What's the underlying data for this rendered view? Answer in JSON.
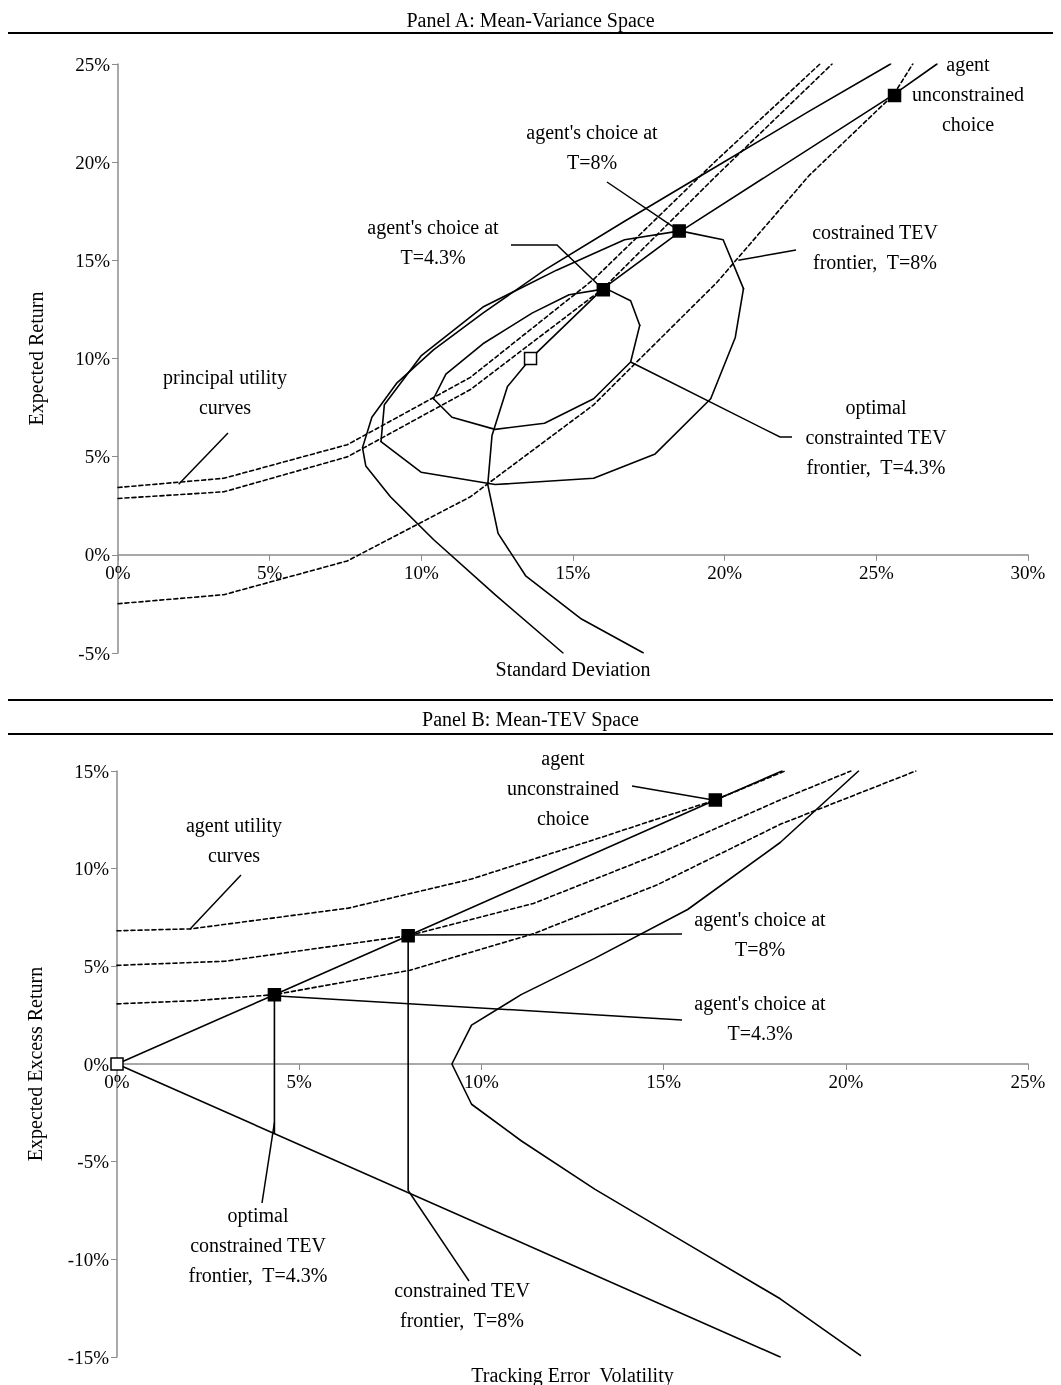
{
  "chart_data": [
    {
      "type": "line",
      "title": "Panel A: Mean-Variance Space",
      "xlabel": "Standard Deviation",
      "ylabel": "Expected Return",
      "grid": false,
      "marker": "none",
      "xlim": [
        0,
        30
      ],
      "xticks": [
        {
          "value": 0,
          "label": "0%"
        },
        {
          "value": 5,
          "label": "5%"
        },
        {
          "value": 10,
          "label": "10%"
        },
        {
          "value": 15,
          "label": "15%"
        },
        {
          "value": 20,
          "label": "20%"
        },
        {
          "value": 25,
          "label": "25%"
        },
        {
          "value": 30,
          "label": "30%"
        }
      ],
      "ylim": [
        -5,
        25
      ],
      "yticks": [
        {
          "value": -5,
          "label": "-5%"
        },
        {
          "value": 0,
          "label": "0%"
        },
        {
          "value": 5,
          "label": "5%"
        },
        {
          "value": 10,
          "label": "10%"
        },
        {
          "value": 15,
          "label": "15%"
        },
        {
          "value": 20,
          "label": "20%"
        },
        {
          "value": 25,
          "label": "25%"
        }
      ],
      "series": [
        {
          "type": "line",
          "color": "#000000",
          "line_style": "solid",
          "x": [
            14.67,
            12.43,
            10.4,
            8.98,
            8.17,
            8.06,
            8.37,
            9.18,
            10.4,
            12.03,
            14.06,
            16.7,
            19.74,
            22.79,
            25.47
          ],
          "values": [
            -5.0,
            -2.03,
            0.78,
            2.96,
            4.52,
            5.46,
            7.01,
            8.73,
            10.44,
            12.31,
            14.5,
            16.99,
            19.79,
            22.6,
            25.0
          ]
        },
        {
          "type": "line",
          "color": "#000000",
          "line_style": "solid",
          "x": [
            17.31,
            15.28,
            13.45,
            12.53,
            12.19,
            12.33,
            12.84,
            13.59,
            15.99,
            18.53,
            25.57,
            27.0
          ],
          "values": [
            -4.99,
            -3.27,
            -1.09,
            1.09,
            3.58,
            6.08,
            8.57,
            9.98,
            13.56,
            16.46,
            23.44,
            25.0
          ]
        },
        {
          "type": "line",
          "color": "#000000",
          "line_style": "solid",
          "x": [
            10.4,
            10.81,
            12.03,
            13.65,
            14.87,
            16.09,
            16.9,
            17.2
          ],
          "values": [
            7.95,
            9.2,
            10.75,
            12.31,
            13.25,
            13.56,
            12.94,
            11.69
          ]
        },
        {
          "type": "line",
          "color": "#000000",
          "line_style": "solid",
          "x": [
            10.4,
            11.01,
            12.43,
            14.06,
            15.68,
            16.9,
            17.2
          ],
          "values": [
            7.95,
            7.01,
            6.39,
            6.7,
            7.95,
            9.82,
            11.69
          ]
        },
        {
          "type": "line",
          "color": "#000000",
          "line_style": "solid",
          "x": [
            8.67,
            8.78,
            9.99,
            12.03,
            14.46,
            16.7,
            18.53,
            19.95,
            20.62
          ],
          "values": [
            5.77,
            7.64,
            10.13,
            12.62,
            14.5,
            16.05,
            16.5,
            16.05,
            13.56
          ]
        },
        {
          "type": "line",
          "color": "#000000",
          "line_style": "solid",
          "x": [
            8.67,
            9.99,
            12.43,
            15.68,
            17.71,
            19.54,
            20.35,
            20.62
          ],
          "values": [
            5.77,
            4.21,
            3.58,
            3.9,
            5.14,
            7.95,
            11.07,
            13.56
          ]
        },
        {
          "type": "line",
          "color": "#000000",
          "line_style": "dashed",
          "x": [
            0,
            3.49,
            7.56,
            11.62,
            15.68,
            19.74,
            23.14
          ],
          "values": [
            3.43,
            3.9,
            5.61,
            9.04,
            14.03,
            20.11,
            25.0
          ]
        },
        {
          "type": "line",
          "color": "#000000",
          "line_style": "dashed",
          "x": [
            0,
            3.49,
            7.56,
            11.62,
            15.99,
            19.74,
            23.54
          ],
          "values": [
            2.87,
            3.21,
            4.99,
            8.42,
            13.56,
            19.33,
            25.0
          ]
        },
        {
          "type": "line",
          "color": "#000000",
          "line_style": "dashed",
          "x": [
            0,
            3.49,
            7.56,
            11.62,
            15.68,
            19.74,
            22.79,
            25.57,
            26.2
          ],
          "values": [
            -2.49,
            -2.03,
            -0.31,
            2.96,
            7.64,
            13.87,
            19.33,
            23.44,
            25.0
          ]
        },
        {
          "type": "scatter",
          "marker": "square",
          "color": "#000000",
          "x": [
            16.0,
            18.5,
            25.6
          ],
          "values": [
            13.5,
            16.5,
            23.4
          ]
        },
        {
          "type": "scatter",
          "marker": "square",
          "color": "#ffffff",
          "x": [
            13.6
          ],
          "values": [
            10.0
          ]
        }
      ],
      "annotations": [
        {
          "text": "agent\nunconstrained\nchoice",
          "x": 25.6,
          "y": 23.4
        },
        {
          "text": "agent's choice at\nT=8%",
          "x": 18.5,
          "y": 16.5
        },
        {
          "text": "agent's choice at\nT=4.3%",
          "x": 16.0,
          "y": 13.5
        },
        {
          "text": "costrained TEV\nfrontier,  T=8%",
          "x": 20.45,
          "y": 15.0
        },
        {
          "text": "optimal\nconstrainted TEV\nfrontier,  T=4.3%",
          "x": 16.9,
          "y": 9.82
        },
        {
          "text": "principal utility\ncurves",
          "x": 2.0,
          "y": 3.6
        }
      ]
    },
    {
      "type": "line",
      "title": "Panel B: Mean-TEV Space",
      "xlabel": "Tracking Error  Volatility",
      "ylabel": "Expected Excess Return",
      "grid": false,
      "marker": "none",
      "xlim": [
        0,
        25
      ],
      "xticks": [
        {
          "value": 0,
          "label": "0%"
        },
        {
          "value": 5,
          "label": "5%"
        },
        {
          "value": 10,
          "label": "10%"
        },
        {
          "value": 15,
          "label": "15%"
        },
        {
          "value": 20,
          "label": "20%"
        },
        {
          "value": 25,
          "label": "25%"
        }
      ],
      "ylim": [
        -15,
        15
      ],
      "yticks": [
        {
          "value": -15,
          "label": "-15%"
        },
        {
          "value": -10,
          "label": "-10%"
        },
        {
          "value": -5,
          "label": "-5%"
        },
        {
          "value": 0,
          "label": "0%"
        },
        {
          "value": 5,
          "label": "5%"
        },
        {
          "value": 10,
          "label": "10%"
        },
        {
          "value": 15,
          "label": "15%"
        }
      ],
      "series": [
        {
          "type": "line",
          "color": "#000000",
          "line_style": "solid",
          "x": [
            0,
            4.32,
            7.99,
            16.42,
            18.25
          ],
          "values": [
            0,
            3.55,
            6.57,
            13.52,
            15.0
          ]
        },
        {
          "type": "line",
          "color": "#000000",
          "line_style": "solid",
          "x": [
            0,
            18.2
          ],
          "values": [
            0,
            -15.0
          ]
        },
        {
          "type": "line",
          "color": "#000000",
          "line_style": "solid",
          "x": [
            20.35,
            18.2,
            15.66,
            13.12,
            11.09,
            9.73,
            9.19,
            9.73,
            11.09,
            13.12,
            15.66,
            18.2,
            20.4
          ],
          "values": [
            15.0,
            11.34,
            7.91,
            5.42,
            3.55,
            1.99,
            0,
            -2.06,
            -3.93,
            -6.42,
            -9.22,
            -12.02,
            -14.92
          ]
        },
        {
          "type": "line",
          "color": "#000000",
          "line_style": "solid",
          "x": [
            4.32,
            4.32
          ],
          "values": [
            3.55,
            -3.56
          ]
        },
        {
          "type": "line",
          "color": "#000000",
          "line_style": "solid",
          "x": [
            7.99,
            7.99
          ],
          "values": [
            6.57,
            -6.48
          ]
        },
        {
          "type": "line",
          "color": "#000000",
          "line_style": "dashed",
          "x": [
            0,
            2.03,
            6.35,
            9.73,
            13.12,
            16.42,
            18.33
          ],
          "values": [
            6.82,
            6.92,
            7.98,
            9.47,
            11.5,
            13.52,
            15.0
          ]
        },
        {
          "type": "line",
          "color": "#000000",
          "line_style": "dashed",
          "x": [
            0,
            2.96,
            7.99,
            11.43,
            14.81,
            18.2,
            20.14
          ],
          "values": [
            5.05,
            5.26,
            6.57,
            8.22,
            10.72,
            13.52,
            15.0
          ]
        },
        {
          "type": "line",
          "color": "#000000",
          "line_style": "dashed",
          "x": [
            0,
            2.12,
            4.32,
            8.04,
            11.43,
            14.81,
            18.2,
            21.92
          ],
          "values": [
            3.08,
            3.24,
            3.55,
            4.8,
            6.67,
            9.16,
            12.27,
            15.0
          ]
        },
        {
          "type": "scatter",
          "marker": "square",
          "color": "#000000",
          "x": [
            4.32,
            7.99,
            16.42
          ],
          "values": [
            3.55,
            6.57,
            13.52
          ]
        },
        {
          "type": "scatter",
          "marker": "square",
          "color": "#ffffff",
          "x": [
            0
          ],
          "values": [
            0
          ]
        }
      ],
      "annotations": [
        {
          "text": "agent\nunconstrained\nchoice",
          "x": 16.4,
          "y": 13.5
        },
        {
          "text": "agent utility\ncurves",
          "x": 2.0,
          "y": 6.9
        },
        {
          "text": "agent's choice at\nT=8%",
          "x": 8.0,
          "y": 6.6
        },
        {
          "text": "agent's choice at\nT=4.3%",
          "x": 4.3,
          "y": 3.5
        },
        {
          "text": "optimal\nconstrained TEV\nfrontier,  T=4.3%",
          "x": 4.32,
          "y": -3.0
        },
        {
          "text": "constrained TEV\nfrontier,  T=8%",
          "x": 8.0,
          "y": -6.5
        }
      ]
    }
  ]
}
